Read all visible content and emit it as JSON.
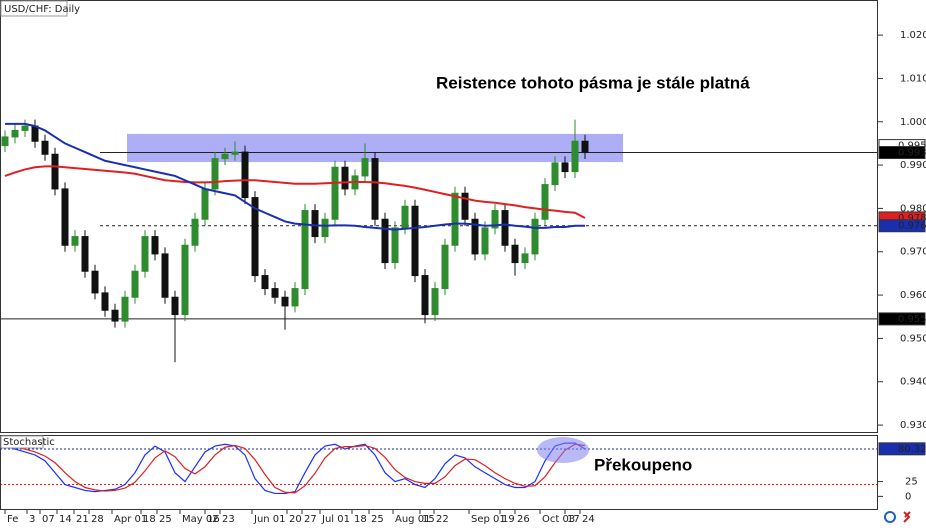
{
  "chart_data": [
    {
      "type": "candlestick",
      "title": "USD/CHF: Daily",
      "annotation": "Reistence tohoto pásma je stále platná",
      "xlim": [
        -0.5,
        87.3
      ],
      "ylim": [
        0.9289,
        1.0286
      ],
      "yticks": [
        1.0205,
        1.0105,
        1.0005,
        0.9905,
        0.9805,
        0.9705,
        0.9605,
        0.9505,
        0.9405,
        0.9305
      ],
      "up_color": "#2e8b2e",
      "down_color": "#111111",
      "open": [
        0.995,
        0.997,
        0.9985,
        0.9995,
        0.996,
        0.993,
        0.985,
        0.972,
        0.974,
        0.966,
        0.961,
        0.957,
        0.9545,
        0.96,
        0.966,
        0.974,
        0.97,
        0.96,
        0.956,
        0.972,
        0.978,
        0.985,
        0.992,
        0.993,
        0.9935,
        0.983,
        0.965,
        0.962,
        0.96,
        0.958,
        0.962,
        0.98,
        0.974,
        0.978,
        0.99,
        0.985,
        0.988,
        0.992,
        0.978,
        0.968,
        0.976,
        0.981,
        0.965,
        0.956,
        0.962,
        0.972,
        0.984,
        0.978,
        0.97,
        0.976,
        0.98,
        0.972,
        0.968,
        0.97,
        0.978,
        0.986,
        0.991,
        0.989,
        0.996
      ],
      "high": [
        0.9985,
        1.0,
        1.001,
        1.001,
        0.9975,
        0.9945,
        0.9865,
        0.9755,
        0.9755,
        0.9675,
        0.9625,
        0.9585,
        0.9615,
        0.9675,
        0.9755,
        0.9755,
        0.9715,
        0.9615,
        0.9735,
        0.9795,
        0.9865,
        0.9935,
        0.9945,
        0.996,
        0.995,
        0.9845,
        0.9665,
        0.9635,
        0.9615,
        0.9635,
        0.9815,
        0.9815,
        0.9795,
        0.9915,
        0.9915,
        0.9895,
        0.9955,
        0.9935,
        0.9795,
        0.9775,
        0.9825,
        0.9825,
        0.9665,
        0.9635,
        0.9735,
        0.9855,
        0.9855,
        0.9795,
        0.9775,
        0.9815,
        0.9815,
        0.9735,
        0.9715,
        0.9795,
        0.9875,
        0.9925,
        0.9925,
        1.001,
        0.9975
      ],
      "low": [
        0.9935,
        0.9955,
        0.997,
        0.9945,
        0.9915,
        0.9835,
        0.9705,
        0.9705,
        0.9645,
        0.9595,
        0.9555,
        0.953,
        0.953,
        0.9585,
        0.9645,
        0.9685,
        0.9585,
        0.945,
        0.9545,
        0.9705,
        0.9765,
        0.9835,
        0.9905,
        0.9915,
        0.9815,
        0.9635,
        0.9605,
        0.9585,
        0.9525,
        0.9565,
        0.9605,
        0.9725,
        0.9725,
        0.9765,
        0.9835,
        0.9835,
        0.9865,
        0.9765,
        0.9665,
        0.9665,
        0.9745,
        0.9635,
        0.954,
        0.9545,
        0.9605,
        0.9705,
        0.9765,
        0.9685,
        0.9685,
        0.9745,
        0.9705,
        0.965,
        0.9665,
        0.9685,
        0.9765,
        0.9845,
        0.9875,
        0.9875,
        0.9919
      ],
      "close": [
        0.997,
        0.9985,
        0.9995,
        0.996,
        0.993,
        0.985,
        0.972,
        0.974,
        0.966,
        0.961,
        0.957,
        0.9545,
        0.96,
        0.966,
        0.974,
        0.97,
        0.96,
        0.956,
        0.972,
        0.978,
        0.985,
        0.992,
        0.993,
        0.9935,
        0.983,
        0.965,
        0.962,
        0.96,
        0.958,
        0.962,
        0.98,
        0.974,
        0.978,
        0.99,
        0.985,
        0.988,
        0.992,
        0.978,
        0.968,
        0.976,
        0.981,
        0.965,
        0.956,
        0.962,
        0.972,
        0.984,
        0.978,
        0.97,
        0.976,
        0.98,
        0.972,
        0.968,
        0.97,
        0.978,
        0.986,
        0.991,
        0.989,
        0.996,
        0.9934
      ],
      "overlays": [
        {
          "color": "#e02020",
          "values": [
            0.988,
            0.9888,
            0.9895,
            0.99,
            0.9902,
            0.9902,
            0.99,
            0.9898,
            0.9896,
            0.9894,
            0.9892,
            0.989,
            0.9888,
            0.9885,
            0.988,
            0.9875,
            0.987,
            0.9868,
            0.9866,
            0.9865,
            0.9865,
            0.9866,
            0.9868,
            0.9869,
            0.987,
            0.987,
            0.9868,
            0.9866,
            0.9864,
            0.9862,
            0.9862,
            0.9862,
            0.9863,
            0.9864,
            0.9865,
            0.9866,
            0.9866,
            0.9865,
            0.9863,
            0.986,
            0.9857,
            0.9853,
            0.9848,
            0.9843,
            0.9838,
            0.9833,
            0.9828,
            0.9823,
            0.982,
            0.9818,
            0.9815,
            0.9812,
            0.9808,
            0.9805,
            0.9802,
            0.98,
            0.9797,
            0.9795,
            0.9783
          ]
        },
        {
          "color": "#1a2fb0",
          "values": [
            1.0,
            1.0,
            1.0,
            0.9995,
            0.9985,
            0.997,
            0.9955,
            0.9945,
            0.9935,
            0.9925,
            0.9915,
            0.991,
            0.9905,
            0.99,
            0.9895,
            0.989,
            0.9885,
            0.988,
            0.987,
            0.986,
            0.985,
            0.9845,
            0.984,
            0.9835,
            0.982,
            0.9805,
            0.9795,
            0.9785,
            0.9775,
            0.977,
            0.9768,
            0.9766,
            0.9765,
            0.9766,
            0.9766,
            0.9765,
            0.9762,
            0.976,
            0.9758,
            0.9756,
            0.9758,
            0.976,
            0.9762,
            0.9765,
            0.9768,
            0.977,
            0.977,
            0.9768,
            0.9765,
            0.9766,
            0.9768,
            0.9765,
            0.9763,
            0.976,
            0.976,
            0.9762,
            0.9762,
            0.9765,
            0.9765
          ]
        }
      ],
      "zone": {
        "x": [
          12.2,
          61.8
        ],
        "y": [
          0.9912,
          0.9977
        ],
        "color": "#8c8cf2"
      },
      "levels": [
        {
          "value": 0.9934,
          "from": 9.5,
          "dash": false
        },
        {
          "value": 0.9765,
          "from": 9.5,
          "dash": true
        },
        {
          "value": 0.955,
          "from": -0.5,
          "dash": false
        }
      ],
      "markers": [
        {
          "value": 0.995,
          "label": "0.9950",
          "color": "#ffffff",
          "text": "#000000"
        },
        {
          "value": 0.9934,
          "color": "#000000",
          "text": "#ffffff"
        },
        {
          "value": 0.9783,
          "color": "#e02020",
          "text": "#ffffff"
        },
        {
          "value": 0.9765,
          "color": "#1a2fb0",
          "text": "#ffffff"
        },
        {
          "value": 0.955,
          "label": "0.9550",
          "color": "#000000",
          "text": "#ffffff"
        }
      ]
    },
    {
      "type": "line",
      "title": "Stochastic",
      "annotation": "Překoupeno",
      "xlim": [
        -0.5,
        87.3
      ],
      "ylim": [
        -23,
        102
      ],
      "yticks": [
        25,
        0
      ],
      "series": [
        {
          "color": "#1a2fff",
          "values": [
            85,
            80,
            75,
            70,
            60,
            40,
            20,
            15,
            10,
            8,
            10,
            12,
            20,
            40,
            70,
            85,
            75,
            40,
            25,
            50,
            75,
            85,
            88,
            85,
            70,
            30,
            10,
            5,
            5,
            8,
            40,
            70,
            85,
            88,
            80,
            85,
            88,
            70,
            40,
            25,
            30,
            20,
            15,
            30,
            55,
            70,
            65,
            50,
            40,
            30,
            20,
            15,
            15,
            25,
            60,
            85,
            90,
            90,
            80.32
          ]
        },
        {
          "color": "#e02020",
          "values": [
            83,
            83,
            80,
            75,
            68,
            57,
            40,
            25,
            15,
            11,
            9,
            10,
            14,
            24,
            43,
            65,
            77,
            67,
            47,
            38,
            50,
            70,
            83,
            86,
            81,
            62,
            37,
            15,
            7,
            6,
            18,
            39,
            65,
            81,
            84,
            84,
            86,
            81,
            66,
            45,
            32,
            25,
            22,
            22,
            33,
            52,
            63,
            62,
            52,
            40,
            30,
            22,
            17,
            18,
            33,
            57,
            78,
            88,
            86
          ]
        }
      ],
      "levels": [
        {
          "value": 80,
          "color": "#1a2fb0"
        },
        {
          "value": 20,
          "color": "#e02020"
        }
      ],
      "markers": [
        {
          "value": 80.32,
          "color": "#1a2fb0",
          "text": "#ffffff"
        }
      ],
      "xticks": [
        {
          "value": 0,
          "label": "Fe"
        },
        {
          "value": 2.2,
          "label": "3"
        },
        {
          "value": 3.5,
          "label": "07"
        },
        {
          "value": 5.2,
          "label": "14"
        },
        {
          "value": 6.9,
          "label": "21"
        },
        {
          "value": 8.4,
          "label": "28"
        },
        {
          "value": 10.7,
          "label": "Apr 01"
        },
        {
          "value": 13.6,
          "label": "18"
        },
        {
          "value": 15.2,
          "label": "25"
        },
        {
          "value": 17.5,
          "label": "May 02"
        },
        {
          "value": 20,
          "label": "16"
        },
        {
          "value": 21.5,
          "label": "23"
        },
        {
          "value": 24.7,
          "label": "Jun 01"
        },
        {
          "value": 28.2,
          "label": "20"
        },
        {
          "value": 29.7,
          "label": "27"
        },
        {
          "value": 31.5,
          "label": "Jul 01"
        },
        {
          "value": 34.7,
          "label": "18"
        },
        {
          "value": 36.4,
          "label": "25"
        },
        {
          "value": 38.8,
          "label": "Aug 01"
        },
        {
          "value": 41.5,
          "label": "15"
        },
        {
          "value": 42.9,
          "label": "22"
        },
        {
          "value": 46.4,
          "label": "Sep 01"
        },
        {
          "value": 49.5,
          "label": "19"
        },
        {
          "value": 51,
          "label": "26"
        },
        {
          "value": 53.5,
          "label": "Oct 03"
        },
        {
          "value": 56,
          "label": "17"
        },
        {
          "value": 57.5,
          "label": "24"
        }
      ]
    }
  ]
}
